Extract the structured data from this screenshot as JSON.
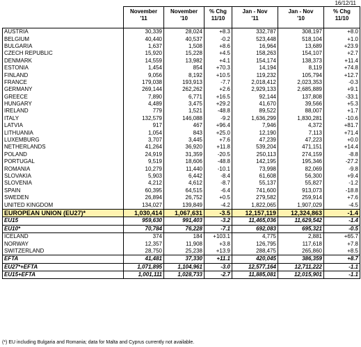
{
  "date": "16/12/11",
  "headers": [
    {
      "l1": "November",
      "l2": "'11"
    },
    {
      "l1": "November",
      "l2": "'10"
    },
    {
      "l1": "% Chg",
      "l2": "11/10"
    },
    {
      "l1": "Jan - Nov",
      "l2": "'11"
    },
    {
      "l1": "Jan - Nov",
      "l2": "'10"
    },
    {
      "l1": "% Chg",
      "l2": "11/10"
    }
  ],
  "rows": [
    {
      "name": "AUSTRIA",
      "v": [
        "30,339",
        "28,024",
        "+8.3",
        "332,787",
        "308,197",
        "+8.0"
      ]
    },
    {
      "name": "BELGIUM",
      "v": [
        "40,440",
        "40,537",
        "-0.2",
        "523,448",
        "518,104",
        "+1.0"
      ]
    },
    {
      "name": "BULGARIA",
      "v": [
        "1,637",
        "1,508",
        "+8.6",
        "16,964",
        "13,689",
        "+23.9"
      ]
    },
    {
      "name": "CZECH REPUBLIC",
      "v": [
        "15,920",
        "15,228",
        "+4.5",
        "158,263",
        "154,107",
        "+2.7"
      ]
    },
    {
      "name": "DENMARK",
      "v": [
        "14,559",
        "13,982",
        "+4.1",
        "154,174",
        "138,373",
        "+11.4"
      ]
    },
    {
      "name": "ESTONIA",
      "v": [
        "1,454",
        "854",
        "+70.3",
        "14,194",
        "8,119",
        "+74.8"
      ]
    },
    {
      "name": "FINLAND",
      "v": [
        "9,056",
        "8,192",
        "+10.5",
        "119,232",
        "105,794",
        "+12.7"
      ]
    },
    {
      "name": "FRANCE",
      "v": [
        "179,038",
        "193,913",
        "-7.7",
        "2,018,412",
        "2,023,353",
        "-0.3"
      ]
    },
    {
      "name": "GERMANY",
      "v": [
        "269,144",
        "262,262",
        "+2.6",
        "2,929,133",
        "2,685,889",
        "+9.1"
      ]
    },
    {
      "name": "GREECE",
      "v": [
        "7,890",
        "6,771",
        "+16.5",
        "92,144",
        "137,808",
        "-33.1"
      ]
    },
    {
      "name": "HUNGARY",
      "v": [
        "4,489",
        "3,475",
        "+29.2",
        "41,670",
        "39,566",
        "+5.3"
      ]
    },
    {
      "name": "IRELAND",
      "v": [
        "779",
        "1,521",
        "-48.8",
        "89,522",
        "88,007",
        "+1.7"
      ]
    },
    {
      "name": "ITALY",
      "v": [
        "132,579",
        "146,088",
        "-9.2",
        "1,636,299",
        "1,830,281",
        "-10.6"
      ]
    },
    {
      "name": "LATVIA",
      "v": [
        "917",
        "467",
        "+96.4",
        "7,946",
        "4,372",
        "+81.7"
      ]
    },
    {
      "name": "LITHUANIA",
      "v": [
        "1,054",
        "843",
        "+25.0",
        "12,190",
        "7,113",
        "+71.4"
      ]
    },
    {
      "name": "LUXEMBURG",
      "v": [
        "3,707",
        "3,445",
        "+7.6",
        "47,239",
        "47,223",
        "+0.0"
      ]
    },
    {
      "name": "NETHERLANDS",
      "v": [
        "41,264",
        "36,920",
        "+11.8",
        "539,204",
        "471,151",
        "+14.4"
      ]
    },
    {
      "name": "POLAND",
      "v": [
        "24,919",
        "31,359",
        "-20.5",
        "250,113",
        "274,159",
        "-8.8"
      ]
    },
    {
      "name": "PORTUGAL",
      "v": [
        "9,519",
        "18,606",
        "-48.8",
        "142,195",
        "195,346",
        "-27.2"
      ]
    },
    {
      "name": "ROMANIA",
      "v": [
        "10,279",
        "11,440",
        "-10.1",
        "73,998",
        "82,069",
        "-9.8"
      ]
    },
    {
      "name": "SLOVAKIA",
      "v": [
        "5,903",
        "6,442",
        "-8.4",
        "61,608",
        "56,300",
        "+9.4"
      ]
    },
    {
      "name": "SLOVENIA",
      "v": [
        "4,212",
        "4,612",
        "-8.7",
        "55,137",
        "55,827",
        "-1.2"
      ]
    },
    {
      "name": "SPAIN",
      "v": [
        "60,395",
        "64,515",
        "-6.4",
        "741,600",
        "913,073",
        "-18.8"
      ]
    },
    {
      "name": "SWEDEN",
      "v": [
        "26,894",
        "26,752",
        "+0.5",
        "279,582",
        "259,914",
        "+7.6"
      ]
    },
    {
      "name": "UNITED KINGDOM",
      "v": [
        "134,027",
        "139,849",
        "-4.2",
        "1,822,065",
        "1,907,029",
        "-4.5"
      ]
    }
  ],
  "eu27": {
    "name": "EUROPEAN UNION (EU27)*",
    "v": [
      "1,030,414",
      "1,067,631",
      "-3.5",
      "12,157,119",
      "12,324,863",
      "-1.4"
    ]
  },
  "eu15": {
    "name": "EU15",
    "v": [
      "959,630",
      "991,403",
      "-3.2",
      "11,465,036",
      "11,629,542",
      "-1.4"
    ]
  },
  "eu10": {
    "name": "EU10*",
    "v": [
      "70,784",
      "76,228",
      "-7.1",
      "692,083",
      "695,321",
      "-0.5"
    ]
  },
  "efta_rows": [
    {
      "name": "ICELAND",
      "v": [
        "374",
        "184",
        "+103.1",
        "4,775",
        "2,881",
        "+65.7"
      ]
    },
    {
      "name": "NORWAY",
      "v": [
        "12,357",
        "11,908",
        "+3.8",
        "126,795",
        "117,618",
        "+7.8"
      ]
    },
    {
      "name": "SWITZERLAND",
      "v": [
        "28,750",
        "25,238",
        "+13.9",
        "288,475",
        "265,860",
        "+8.5"
      ]
    }
  ],
  "efta": {
    "name": "EFTA",
    "v": [
      "41,481",
      "37,330",
      "+11.1",
      "420,045",
      "386,359",
      "+8.7"
    ]
  },
  "eu27efta": {
    "name": "EU27*+EFTA",
    "v": [
      "1,071,895",
      "1,104,961",
      "-3.0",
      "12,577,164",
      "12,711,222",
      "-1.1"
    ]
  },
  "eu15efta": {
    "name": "EU15+EFTA",
    "v": [
      "1,001,111",
      "1,028,733",
      "-2.7",
      "11,885,081",
      "12,015,901",
      "-1.1"
    ]
  },
  "footnote": "(*) EU including Bulgaria and Romania; data for Malta and Cyprus currently not available."
}
